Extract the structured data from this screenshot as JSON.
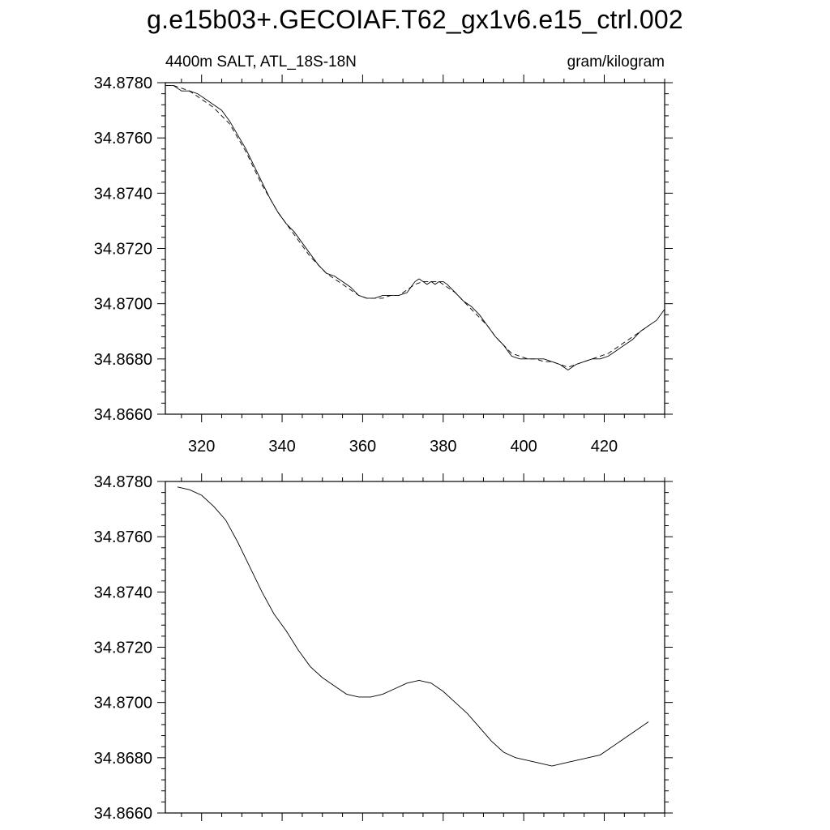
{
  "title": "g.e15b03+.GECOIAF.T62_gx1v6.e15_ctrl.002",
  "chart_data": [
    {
      "type": "line",
      "left_label": "4400m SALT, ATL_18S-18N",
      "right_label": "gram/kilogram",
      "xlim": [
        311,
        435
      ],
      "ylim": [
        34.866,
        34.878
      ],
      "x_ticks": [
        320,
        340,
        360,
        380,
        400,
        420
      ],
      "x_tick_labels": [
        "320",
        "340",
        "360",
        "380",
        "400",
        "420"
      ],
      "y_ticks": [
        34.866,
        34.868,
        34.87,
        34.872,
        34.874,
        34.876,
        34.878
      ],
      "y_tick_labels": [
        "34.8660",
        "34.8680",
        "34.8700",
        "34.8720",
        "34.8740",
        "34.8760",
        "34.8780"
      ],
      "series": [
        {
          "style": "solid",
          "x": [
            311,
            313,
            315,
            317,
            319,
            321,
            323,
            325,
            327,
            329,
            331,
            333,
            335,
            337,
            339,
            341,
            343,
            345,
            347,
            349,
            351,
            353,
            355,
            357,
            359,
            361,
            363,
            365,
            367,
            369,
            371,
            373,
            374,
            375,
            376,
            377,
            378,
            379,
            380,
            381,
            383,
            385,
            387,
            389,
            391,
            393,
            395,
            397,
            399,
            401,
            403,
            405,
            407,
            409,
            410,
            411,
            413,
            415,
            417,
            419,
            421,
            423,
            425,
            427,
            429,
            431,
            433,
            435
          ],
          "values": [
            34.8779,
            34.8779,
            34.8777,
            34.8777,
            34.8776,
            34.8774,
            34.8772,
            34.877,
            34.8766,
            34.8761,
            34.8756,
            34.875,
            34.8744,
            34.8738,
            34.8733,
            34.8729,
            34.8726,
            34.8722,
            34.8718,
            34.8714,
            34.8711,
            34.871,
            34.8708,
            34.8706,
            34.8703,
            34.8702,
            34.8702,
            34.8703,
            34.8703,
            34.8703,
            34.8704,
            34.8708,
            34.8709,
            34.8708,
            34.8707,
            34.8708,
            34.8707,
            34.8708,
            34.8708,
            34.8707,
            34.8704,
            34.8701,
            34.8699,
            34.8696,
            34.8692,
            34.8688,
            34.8685,
            34.8681,
            34.868,
            34.868,
            34.868,
            34.868,
            34.8679,
            34.8678,
            34.8677,
            34.8676,
            34.8678,
            34.8679,
            34.868,
            34.868,
            34.8681,
            34.8683,
            34.8685,
            34.8687,
            34.869,
            34.8692,
            34.8694,
            34.8698
          ]
        },
        {
          "style": "dashed",
          "x": [
            311,
            313,
            315,
            317,
            319,
            321,
            323,
            325,
            327,
            329,
            331,
            333,
            335,
            337,
            339,
            341,
            343,
            345,
            347,
            349,
            351,
            353,
            355,
            357,
            359,
            361,
            363,
            365,
            367,
            369,
            371,
            373,
            375,
            377,
            379,
            381,
            383,
            385,
            387,
            389,
            391,
            393,
            395,
            397,
            399,
            401,
            403,
            405,
            407,
            409,
            411,
            413,
            415,
            417,
            419,
            421,
            423,
            425,
            427,
            429,
            431
          ],
          "values": [
            34.8779,
            34.8779,
            34.8778,
            34.8777,
            34.8775,
            34.8773,
            34.8771,
            34.8768,
            34.8765,
            34.876,
            34.8755,
            34.8749,
            34.8743,
            34.8738,
            34.8733,
            34.8729,
            34.8725,
            34.8721,
            34.8717,
            34.8714,
            34.8711,
            34.8709,
            34.8707,
            34.8705,
            34.8703,
            34.8702,
            34.8702,
            34.8702,
            34.8703,
            34.8703,
            34.8705,
            34.8707,
            34.8708,
            34.8708,
            34.8708,
            34.8706,
            34.8704,
            34.8701,
            34.8698,
            34.8695,
            34.8692,
            34.8688,
            34.8685,
            34.8682,
            34.8681,
            34.868,
            34.868,
            34.8679,
            34.8679,
            34.8678,
            34.8677,
            34.8678,
            34.8679,
            34.868,
            34.8681,
            34.8682,
            34.8684,
            34.8686,
            34.8688,
            34.869,
            34.8692
          ]
        }
      ]
    },
    {
      "type": "line",
      "xlim": [
        311,
        435
      ],
      "ylim": [
        34.866,
        34.878
      ],
      "x_ticks": [
        320,
        340,
        360,
        380,
        400,
        420
      ],
      "y_ticks": [
        34.866,
        34.868,
        34.87,
        34.872,
        34.874,
        34.876,
        34.878
      ],
      "y_tick_labels": [
        "34.8660",
        "34.8680",
        "34.8700",
        "34.8720",
        "34.8740",
        "34.8760",
        "34.8780"
      ],
      "series": [
        {
          "style": "solid",
          "x": [
            314,
            317,
            320,
            323,
            326,
            329,
            332,
            335,
            338,
            341,
            344,
            347,
            350,
            353,
            356,
            359,
            362,
            365,
            368,
            371,
            374,
            377,
            380,
            383,
            386,
            389,
            392,
            395,
            398,
            401,
            404,
            407,
            410,
            413,
            416,
            419,
            422,
            425,
            428,
            431
          ],
          "values": [
            34.8778,
            34.8777,
            34.8775,
            34.8771,
            34.8766,
            34.8758,
            34.8749,
            34.874,
            34.8732,
            34.8726,
            34.8719,
            34.8713,
            34.8709,
            34.8706,
            34.8703,
            34.8702,
            34.8702,
            34.8703,
            34.8705,
            34.8707,
            34.8708,
            34.8707,
            34.8704,
            34.87,
            34.8696,
            34.8691,
            34.8686,
            34.8682,
            34.868,
            34.8679,
            34.8678,
            34.8677,
            34.8678,
            34.8679,
            34.868,
            34.8681,
            34.8684,
            34.8687,
            34.869,
            34.8693
          ]
        }
      ]
    }
  ]
}
